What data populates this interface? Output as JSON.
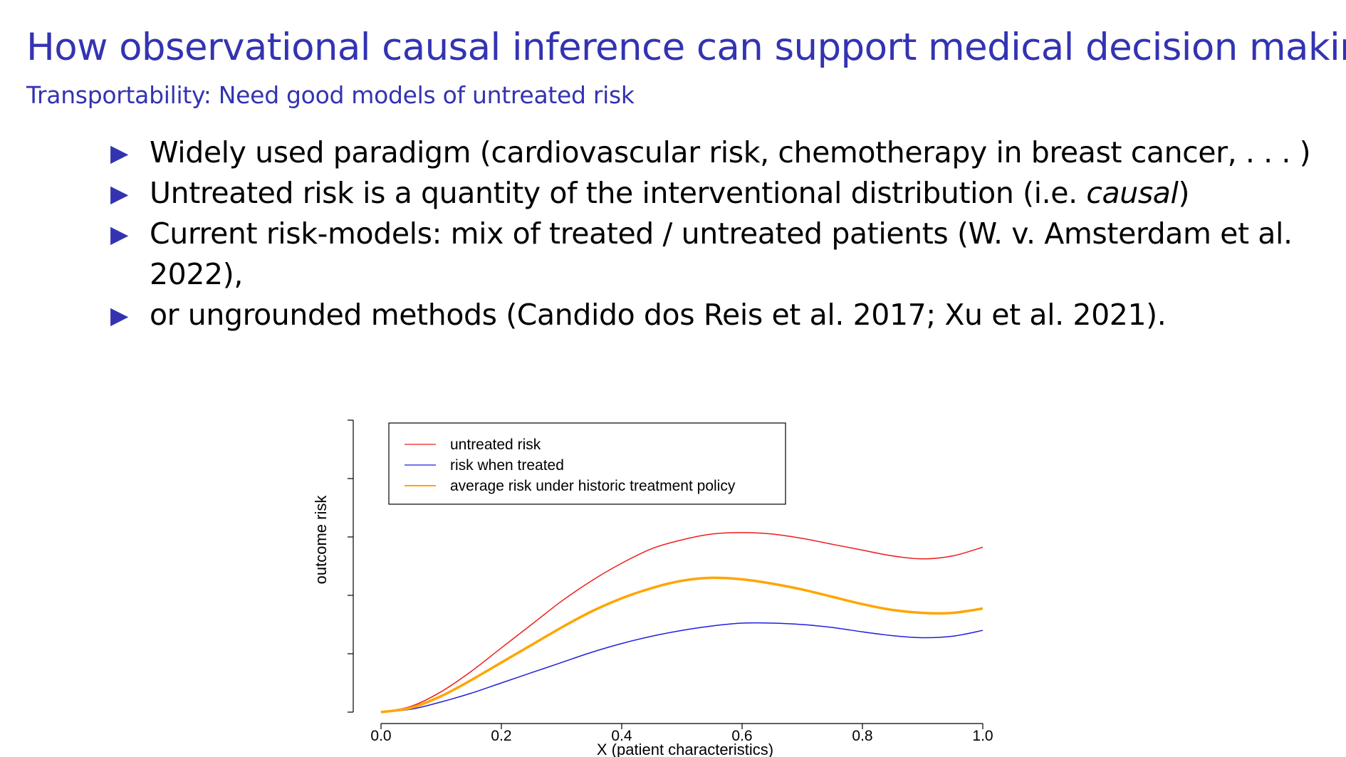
{
  "slide": {
    "title": "How observational causal inference can support medical decision making",
    "subtitle": "Transportability: Need good models of untreated risk",
    "bullets": [
      {
        "text": "Widely used paradigm (cardiovascular risk, chemotherapy in breast cancer, . . . )"
      },
      {
        "before": "Untreated risk is a quantity of the interventional distribution (i.e. ",
        "emph": "causal",
        "after": ")"
      },
      {
        "text": "Current risk-models: mix of treated / untreated patients (W. v. Amsterdam et al. 2022),"
      },
      {
        "text": "or ungrounded methods (Candido dos Reis et al. 2017; Xu et al. 2021)."
      }
    ],
    "bullet_icon": "triangle-right-icon",
    "accent_color": "#3333b2"
  },
  "chart_data": {
    "type": "line",
    "title": "",
    "xlabel": "X (patient characteristics)",
    "ylabel": "outcome risk",
    "xlim": [
      0.0,
      1.0
    ],
    "ylim": [
      0,
      1
    ],
    "x_ticks": [
      "0.0",
      "0.2",
      "0.4",
      "0.6",
      "0.8",
      "1.0"
    ],
    "y_tick_labels_shown": false,
    "grid": false,
    "legend_position": "top-left",
    "x": [
      0.0,
      0.05,
      0.1,
      0.15,
      0.2,
      0.25,
      0.3,
      0.35,
      0.4,
      0.45,
      0.5,
      0.55,
      0.6,
      0.65,
      0.7,
      0.75,
      0.8,
      0.85,
      0.9,
      0.95,
      1.0
    ],
    "series": [
      {
        "name": "untreated risk",
        "color": "#ee1c1c",
        "values": [
          0.0,
          0.02,
          0.07,
          0.14,
          0.22,
          0.3,
          0.38,
          0.45,
          0.51,
          0.56,
          0.59,
          0.61,
          0.615,
          0.61,
          0.595,
          0.575,
          0.555,
          0.535,
          0.525,
          0.535,
          0.565
        ]
      },
      {
        "name": "risk when treated",
        "color": "#1f1fe0",
        "values": [
          0.0,
          0.01,
          0.035,
          0.065,
          0.1,
          0.135,
          0.17,
          0.205,
          0.235,
          0.26,
          0.28,
          0.295,
          0.305,
          0.305,
          0.3,
          0.29,
          0.275,
          0.262,
          0.255,
          0.26,
          0.28
        ]
      },
      {
        "name": "average risk under historic treatment policy",
        "color": "#ffa500",
        "values": [
          0.0,
          0.015,
          0.055,
          0.11,
          0.17,
          0.23,
          0.29,
          0.345,
          0.39,
          0.425,
          0.45,
          0.46,
          0.455,
          0.44,
          0.42,
          0.395,
          0.37,
          0.35,
          0.34,
          0.34,
          0.355
        ]
      }
    ]
  }
}
